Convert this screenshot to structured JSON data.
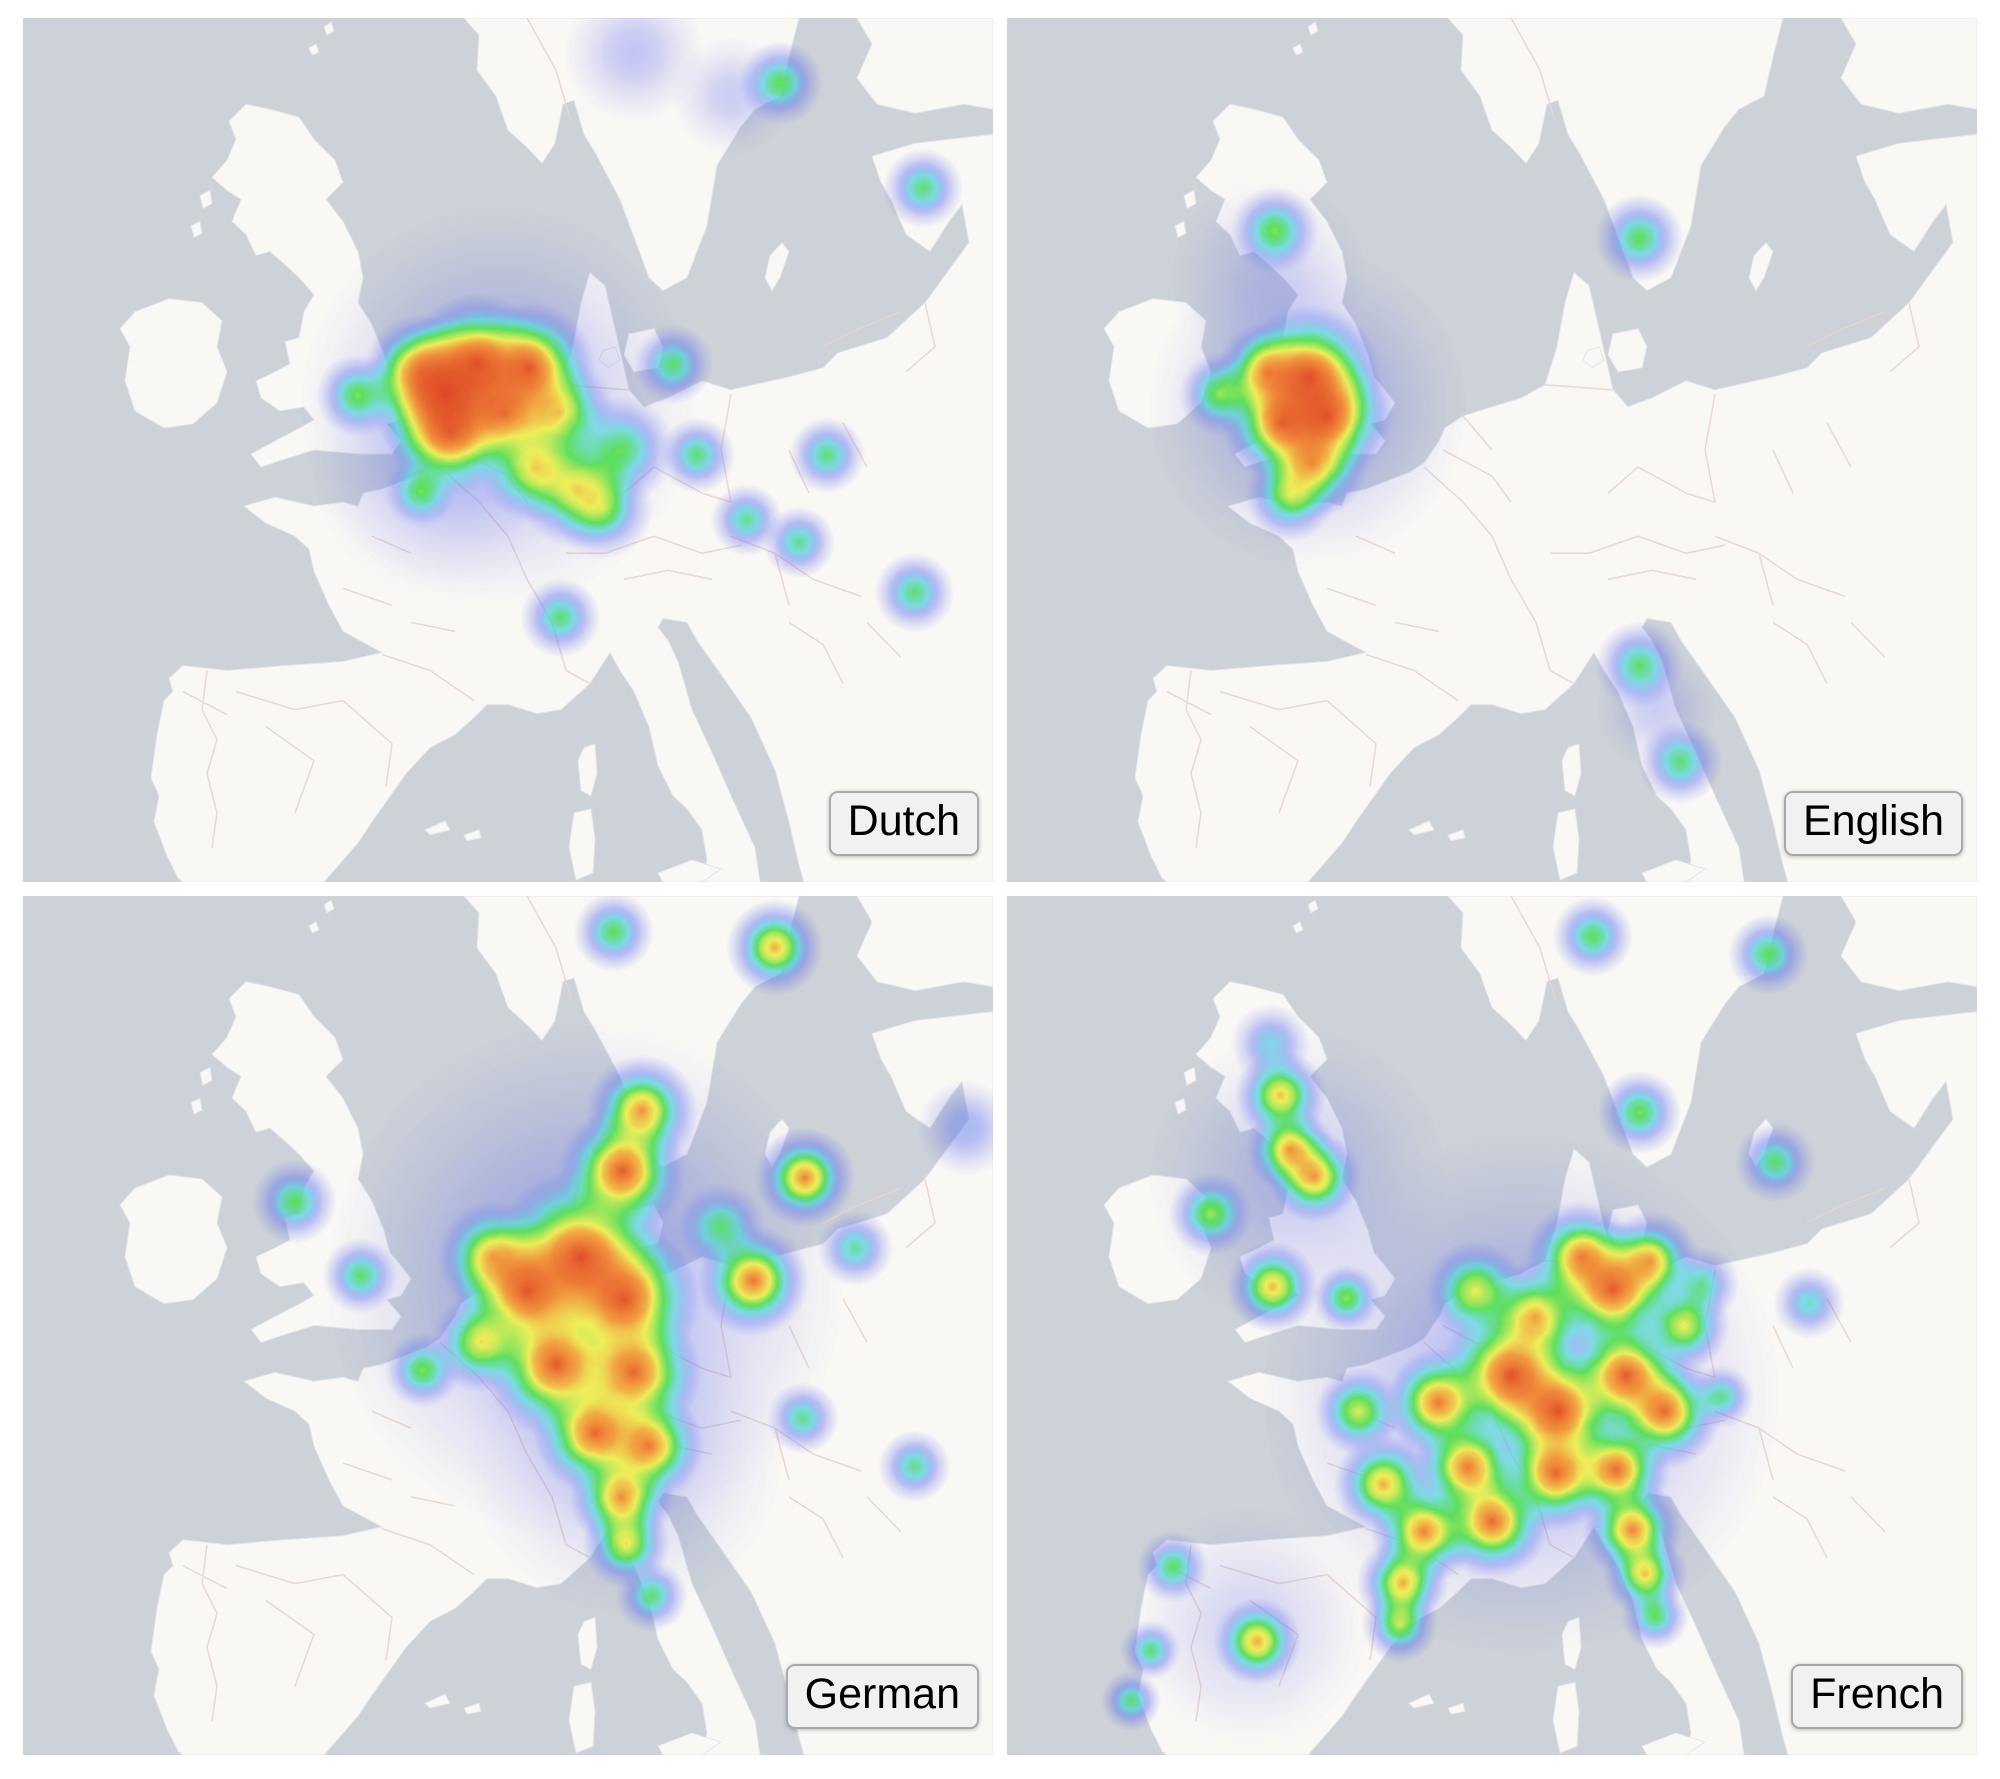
{
  "figure": {
    "background": "#ffffff",
    "description_labels": [
      "Dutch",
      "English",
      "German",
      "French"
    ]
  },
  "map": {
    "sea_color": "#ccd2d7",
    "land_color": "#f9f8f5",
    "border_color": "#e9d4d0",
    "label_bg": "#f1f1f1",
    "label_border": "#a9a9a9",
    "label_text_color": "#000000"
  },
  "heat_palette": {
    "stops": [
      [
        0.0,
        "#5e5ae8"
      ],
      [
        0.22,
        "#5868f2"
      ],
      [
        0.4,
        "#4fcfe0"
      ],
      [
        0.56,
        "#59de59"
      ],
      [
        0.72,
        "#eded55"
      ],
      [
        0.85,
        "#f29238"
      ],
      [
        1.0,
        "#de3d1e"
      ]
    ]
  },
  "panels": [
    {
      "id": "dutch",
      "label": "Dutch",
      "points": [
        [
          0.49,
          0.45,
          200,
          0.22
        ],
        [
          0.43,
          0.52,
          130,
          0.12
        ],
        [
          0.435,
          0.435,
          78,
          0.97
        ],
        [
          0.468,
          0.4,
          70,
          0.95
        ],
        [
          0.522,
          0.405,
          66,
          0.95
        ],
        [
          0.44,
          0.478,
          64,
          0.9
        ],
        [
          0.497,
          0.458,
          60,
          0.85
        ],
        [
          0.41,
          0.41,
          58,
          0.8
        ],
        [
          0.553,
          0.458,
          56,
          0.7
        ],
        [
          0.572,
          0.545,
          60,
          0.68
        ],
        [
          0.528,
          0.52,
          56,
          0.7
        ],
        [
          0.617,
          0.5,
          54,
          0.55
        ],
        [
          0.598,
          0.568,
          50,
          0.55
        ],
        [
          0.41,
          0.548,
          36,
          0.5
        ],
        [
          0.345,
          0.437,
          42,
          0.58
        ],
        [
          0.67,
          0.401,
          40,
          0.55
        ],
        [
          0.695,
          0.506,
          38,
          0.55
        ],
        [
          0.829,
          0.506,
          38,
          0.55
        ],
        [
          0.746,
          0.581,
          36,
          0.52
        ],
        [
          0.8,
          0.607,
          36,
          0.52
        ],
        [
          0.919,
          0.665,
          40,
          0.55
        ],
        [
          0.554,
          0.694,
          40,
          0.55
        ],
        [
          0.781,
          0.075,
          42,
          0.58
        ],
        [
          0.928,
          0.197,
          40,
          0.55
        ],
        [
          0.63,
          0.04,
          70,
          0.18
        ],
        [
          0.73,
          0.09,
          60,
          0.15
        ]
      ]
    },
    {
      "id": "english",
      "label": "English",
      "points": [
        [
          0.31,
          0.45,
          160,
          0.22
        ],
        [
          0.27,
          0.3,
          100,
          0.12
        ],
        [
          0.312,
          0.415,
          72,
          0.97
        ],
        [
          0.33,
          0.46,
          66,
          0.95
        ],
        [
          0.283,
          0.468,
          60,
          0.9
        ],
        [
          0.268,
          0.41,
          50,
          0.8
        ],
        [
          0.315,
          0.515,
          56,
          0.8
        ],
        [
          0.292,
          0.553,
          46,
          0.62
        ],
        [
          0.22,
          0.435,
          42,
          0.6
        ],
        [
          0.276,
          0.246,
          44,
          0.58
        ],
        [
          0.652,
          0.255,
          44,
          0.58
        ],
        [
          0.652,
          0.749,
          44,
          0.55
        ],
        [
          0.694,
          0.861,
          42,
          0.55
        ],
        [
          0.67,
          0.8,
          60,
          0.15
        ]
      ]
    },
    {
      "id": "german",
      "label": "German",
      "points": [
        [
          0.58,
          0.45,
          260,
          0.25
        ],
        [
          0.62,
          0.65,
          160,
          0.15
        ],
        [
          0.638,
          0.25,
          56,
          0.85
        ],
        [
          0.618,
          0.32,
          64,
          0.95
        ],
        [
          0.575,
          0.42,
          88,
          0.97
        ],
        [
          0.52,
          0.46,
          74,
          0.95
        ],
        [
          0.62,
          0.47,
          76,
          0.95
        ],
        [
          0.55,
          0.545,
          74,
          0.95
        ],
        [
          0.63,
          0.555,
          68,
          0.92
        ],
        [
          0.484,
          0.42,
          56,
          0.75
        ],
        [
          0.472,
          0.52,
          50,
          0.7
        ],
        [
          0.59,
          0.625,
          62,
          0.92
        ],
        [
          0.645,
          0.64,
          56,
          0.88
        ],
        [
          0.617,
          0.7,
          52,
          0.85
        ],
        [
          0.622,
          0.755,
          44,
          0.72
        ],
        [
          0.648,
          0.815,
          36,
          0.55
        ],
        [
          0.806,
          0.328,
          50,
          0.88
        ],
        [
          0.753,
          0.448,
          56,
          0.9
        ],
        [
          0.72,
          0.385,
          44,
          0.5
        ],
        [
          0.858,
          0.41,
          38,
          0.5
        ],
        [
          0.804,
          0.608,
          36,
          0.52
        ],
        [
          0.919,
          0.664,
          36,
          0.52
        ],
        [
          0.972,
          0.27,
          48,
          0.28
        ],
        [
          0.609,
          0.042,
          40,
          0.58
        ],
        [
          0.775,
          0.06,
          48,
          0.82
        ],
        [
          0.28,
          0.356,
          42,
          0.58
        ],
        [
          0.348,
          0.442,
          38,
          0.55
        ],
        [
          0.412,
          0.552,
          38,
          0.58
        ]
      ]
    },
    {
      "id": "french",
      "label": "French",
      "points": [
        [
          0.53,
          0.58,
          260,
          0.25
        ],
        [
          0.3,
          0.33,
          150,
          0.15
        ],
        [
          0.25,
          0.85,
          120,
          0.12
        ],
        [
          0.282,
          0.232,
          46,
          0.78
        ],
        [
          0.292,
          0.295,
          44,
          0.82
        ],
        [
          0.317,
          0.327,
          46,
          0.82
        ],
        [
          0.272,
          0.172,
          40,
          0.4
        ],
        [
          0.21,
          0.37,
          42,
          0.62
        ],
        [
          0.274,
          0.455,
          46,
          0.8
        ],
        [
          0.35,
          0.468,
          34,
          0.6
        ],
        [
          0.625,
          0.458,
          68,
          0.95
        ],
        [
          0.592,
          0.42,
          56,
          0.85
        ],
        [
          0.663,
          0.425,
          50,
          0.8
        ],
        [
          0.545,
          0.49,
          56,
          0.78
        ],
        [
          0.483,
          0.46,
          50,
          0.68
        ],
        [
          0.52,
          0.558,
          72,
          0.97
        ],
        [
          0.568,
          0.6,
          68,
          0.97
        ],
        [
          0.638,
          0.558,
          62,
          0.95
        ],
        [
          0.678,
          0.6,
          58,
          0.92
        ],
        [
          0.445,
          0.59,
          54,
          0.88
        ],
        [
          0.475,
          0.665,
          54,
          0.88
        ],
        [
          0.388,
          0.685,
          50,
          0.8
        ],
        [
          0.362,
          0.6,
          44,
          0.68
        ],
        [
          0.43,
          0.74,
          54,
          0.88
        ],
        [
          0.5,
          0.728,
          58,
          0.92
        ],
        [
          0.408,
          0.8,
          46,
          0.82
        ],
        [
          0.405,
          0.848,
          38,
          0.68
        ],
        [
          0.566,
          0.672,
          58,
          0.92
        ],
        [
          0.628,
          0.668,
          54,
          0.92
        ],
        [
          0.645,
          0.738,
          50,
          0.88
        ],
        [
          0.658,
          0.79,
          42,
          0.78
        ],
        [
          0.668,
          0.838,
          34,
          0.58
        ],
        [
          0.698,
          0.5,
          46,
          0.72
        ],
        [
          0.716,
          0.452,
          38,
          0.5
        ],
        [
          0.652,
          0.252,
          42,
          0.6
        ],
        [
          0.792,
          0.31,
          40,
          0.56
        ],
        [
          0.827,
          0.474,
          36,
          0.45
        ],
        [
          0.737,
          0.583,
          32,
          0.5
        ],
        [
          0.171,
          0.781,
          36,
          0.56
        ],
        [
          0.258,
          0.868,
          44,
          0.8
        ],
        [
          0.148,
          0.878,
          30,
          0.55
        ],
        [
          0.128,
          0.937,
          30,
          0.55
        ],
        [
          0.604,
          0.047,
          40,
          0.58
        ],
        [
          0.785,
          0.068,
          40,
          0.58
        ]
      ]
    }
  ]
}
